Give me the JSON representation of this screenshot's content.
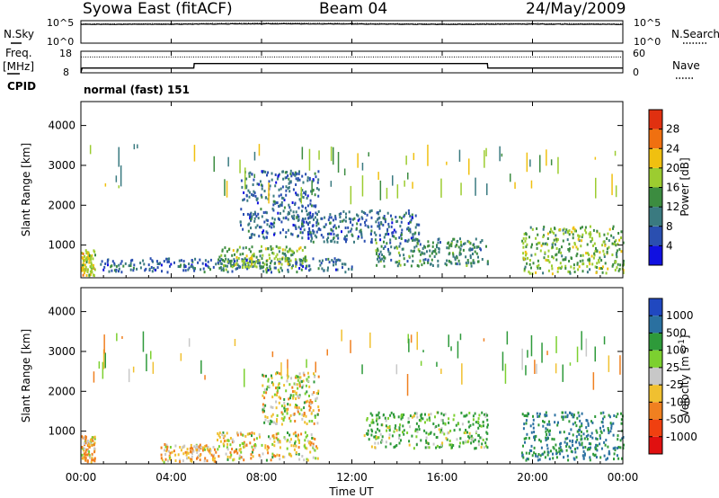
{
  "header": {
    "station": "Syowa East (fitACF)",
    "beam": "Beam 04",
    "date": "24/May/2009",
    "cpid_label": "CPID",
    "cpid_value": "normal (fast) 151"
  },
  "noise_panel": {
    "left_label": "N.Sky",
    "right_label": "N.Search",
    "y_ticks_left": [
      "10^5",
      "10^0"
    ],
    "y_ticks_right": [
      "10^5",
      "10^0"
    ]
  },
  "freq_panel": {
    "left_label_1": "Freq.",
    "left_label_2": "[MHz]",
    "right_label": "Nave",
    "y_ticks_left": [
      "18",
      "8"
    ],
    "y_ticks_right": [
      "60",
      "0"
    ]
  },
  "x_axis": {
    "label": "Time UT",
    "ticks": [
      "00:00",
      "04:00",
      "08:00",
      "12:00",
      "16:00",
      "20:00",
      "00:00"
    ]
  },
  "colors": {
    "power": [
      "#1010e0",
      "#2a4fb0",
      "#3a7a80",
      "#3c8c40",
      "#9ccc30",
      "#f0c010",
      "#f07010",
      "#e03010",
      "#e01010"
    ],
    "velocity": [
      "#e01010",
      "#f04010",
      "#f08020",
      "#f0c030",
      "#c8c8c8",
      "#7cd030",
      "#2e9a3a",
      "#2a70a0",
      "#2048c0",
      "#1018d8"
    ]
  },
  "chart_data": [
    {
      "type": "line",
      "title": "",
      "series": [
        {
          "name": "N.Sky",
          "x": [
            0,
            4,
            8,
            12,
            16,
            20,
            24
          ],
          "values": [
            15000,
            16000,
            20000,
            18000,
            15000,
            17000,
            15000
          ]
        },
        {
          "name": "N.Search",
          "x": [
            0,
            4,
            8,
            12,
            16,
            20,
            24
          ],
          "values": [
            20000,
            22000,
            30000,
            25000,
            20000,
            24000,
            20000
          ]
        }
      ],
      "ylim": [
        1,
        100000
      ],
      "y_scale": "log",
      "xlim": [
        0,
        24
      ]
    },
    {
      "type": "line",
      "title": "",
      "series": [
        {
          "name": "Freq.",
          "x": [
            0,
            0.05,
            5.0,
            5.02,
            18.0,
            18.02,
            24
          ],
          "values": [
            8,
            10.2,
            10.2,
            12.3,
            12.3,
            10.2,
            10.2
          ]
        },
        {
          "name": "Nave",
          "x": [
            0,
            24
          ],
          "values": [
            44,
            44
          ]
        }
      ],
      "ylabel": "Freq. [MHz]",
      "ylim": [
        8,
        18
      ],
      "ylim_right": [
        0,
        60
      ],
      "xlim": [
        0,
        24
      ]
    },
    {
      "type": "heatmap",
      "title": "",
      "ylabel": "Slant Range [km]",
      "ylim": [
        180,
        4600
      ],
      "xlim": [
        0,
        24
      ],
      "yticks": [
        1000,
        2000,
        3000,
        4000
      ],
      "colorbar": {
        "label": "Power [dB]",
        "ticks": [
          4,
          8,
          12,
          16,
          20,
          24,
          28
        ],
        "range": [
          0,
          32
        ]
      },
      "features": [
        {
          "t_start": 0.0,
          "t_end": 0.6,
          "range_start": 250,
          "range_end": 900,
          "value": 20
        },
        {
          "t_start": 0.8,
          "t_end": 12.0,
          "range_start": 350,
          "range_end": 700,
          "value": 8
        },
        {
          "t_start": 6.0,
          "t_end": 10.0,
          "range_start": 400,
          "range_end": 1000,
          "value": 16
        },
        {
          "t_start": 7.0,
          "t_end": 10.5,
          "range_start": 1200,
          "range_end": 2900,
          "value": 8
        },
        {
          "t_start": 10.0,
          "t_end": 15.0,
          "range_start": 1100,
          "range_end": 1900,
          "value": 8
        },
        {
          "t_start": 13.0,
          "t_end": 18.0,
          "range_start": 500,
          "range_end": 1200,
          "value": 12
        },
        {
          "t_start": 19.5,
          "t_end": 24.0,
          "range_start": 300,
          "range_end": 1500,
          "value": 16
        }
      ]
    },
    {
      "type": "heatmap",
      "title": "",
      "ylabel": "Slant Range [km]",
      "ylim": [
        180,
        4600
      ],
      "xlim": [
        0,
        24
      ],
      "yticks": [
        1000,
        2000,
        3000,
        4000
      ],
      "colorbar": {
        "label": "Velocity [m s^-1]",
        "ticks": [
          -1000,
          -500,
          -100,
          -25,
          25,
          100,
          500,
          1000
        ]
      },
      "features": [
        {
          "t_start": 0.0,
          "t_end": 0.6,
          "range_start": 250,
          "range_end": 900,
          "value": -100
        },
        {
          "t_start": 3.5,
          "t_end": 6.0,
          "range_start": 250,
          "range_end": 700,
          "value": -100
        },
        {
          "t_start": 6.0,
          "t_end": 10.5,
          "range_start": 300,
          "range_end": 1000,
          "value": -25
        },
        {
          "t_start": 8.0,
          "t_end": 10.5,
          "range_start": 1200,
          "range_end": 2500,
          "value": 0
        },
        {
          "t_start": 12.5,
          "t_end": 18.0,
          "range_start": 600,
          "range_end": 1500,
          "value": 100
        },
        {
          "t_start": 19.5,
          "t_end": 24.0,
          "range_start": 300,
          "range_end": 1500,
          "value": 500
        }
      ]
    }
  ]
}
